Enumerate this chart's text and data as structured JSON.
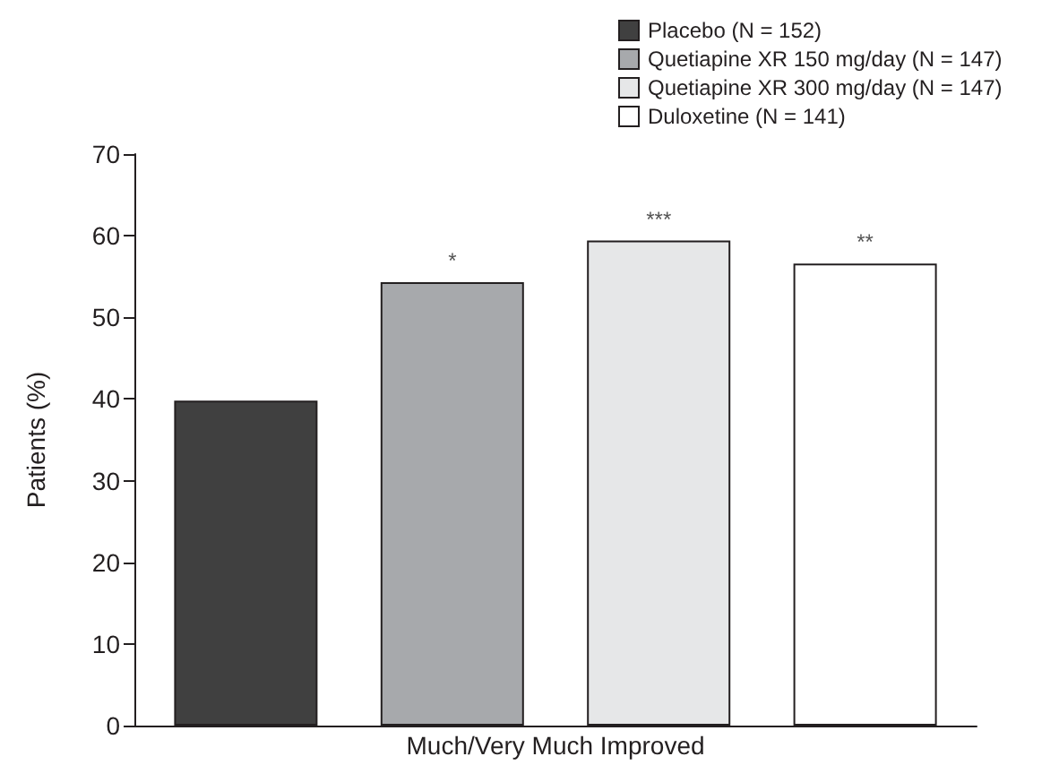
{
  "chart_data": {
    "type": "bar",
    "ylabel": "Patients (%)",
    "categories": [
      "Much/Very Much Improved"
    ],
    "series": [
      {
        "name": "Placebo (N = 152)",
        "color": "#404040",
        "values": [
          39.8
        ]
      },
      {
        "name": "Quetiapine XR 150 mg/day (N = 147)",
        "color": "#a7a9ac",
        "values": [
          54.3
        ],
        "value_labels": [
          "*"
        ]
      },
      {
        "name": "Quetiapine XR 300 mg/day (N = 147)",
        "color": "#e6e7e8",
        "values": [
          59.4
        ],
        "value_labels": [
          "***"
        ]
      },
      {
        "name": "Duloxetine (N = 141)",
        "color": "#ffffff",
        "values": [
          56.6
        ],
        "value_labels": [
          "**"
        ]
      }
    ],
    "ylim": [
      0,
      70
    ],
    "yticks": [
      0,
      10,
      20,
      30,
      40,
      50,
      60,
      70
    ],
    "grid": false,
    "legend": "top right"
  }
}
